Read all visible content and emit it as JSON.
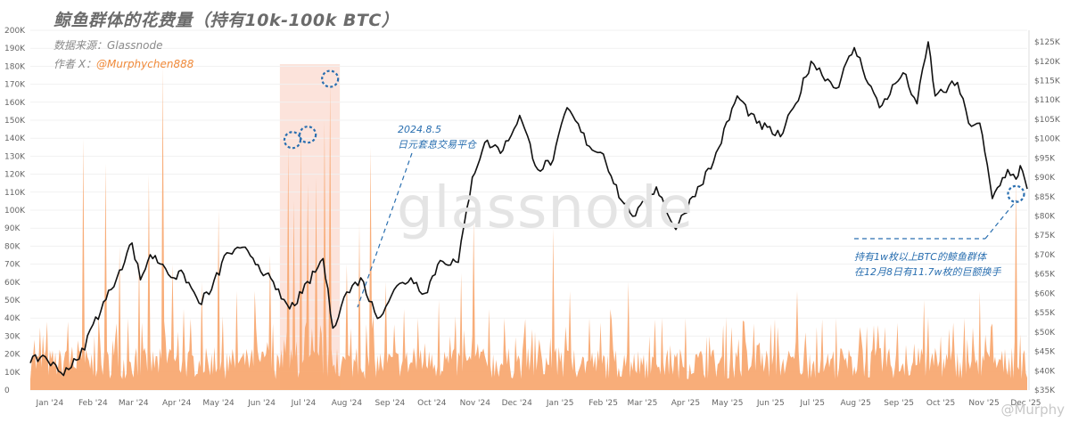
{
  "header": {
    "title": "鲸鱼群体的花费量（持有10k-100k BTC）",
    "source_label": "数据来源：",
    "source_value": "Glassnode",
    "author_label": "作者 X：",
    "author_handle": "@Murphychen888"
  },
  "watermark": {
    "center": "glassnode",
    "footer": "@Murphy"
  },
  "annotations": {
    "yen_date": "2024.8.5",
    "yen_event": "日元套息交易平仓",
    "whale_line1": "持有1w枚以上BTC的鲸鱼群体",
    "whale_line2": "在12月8日有11.7w枚的巨额换手"
  },
  "colors": {
    "spend_fill": "#f7a46a",
    "price_line": "#111111",
    "highlight_band": "#fbd9cf",
    "annotation": "#2a6fb0"
  },
  "chart_data": {
    "type": "area",
    "x_range": [
      "2024-01-01",
      "2025-12-16"
    ],
    "months": [
      "Jan '24",
      "Feb '24",
      "Mar '24",
      "Apr '24",
      "May '24",
      "Jun '24",
      "Jul '24",
      "Aug '24",
      "Sep '24",
      "Oct '24",
      "Nov '24",
      "Dec '24",
      "Jan '25",
      "Feb '25",
      "Mar '25",
      "Apr '25",
      "May '25",
      "Jun '25",
      "Jul '25",
      "Aug '25",
      "Sep '25",
      "Oct '25",
      "Nov '25",
      "Dec '25"
    ],
    "left_axis": {
      "range": [
        0,
        200000
      ],
      "ticks": [
        0,
        10000,
        20000,
        30000,
        40000,
        50000,
        60000,
        70000,
        80000,
        90000,
        100000,
        110000,
        120000,
        130000,
        140000,
        150000,
        160000,
        170000,
        180000,
        190000,
        200000
      ],
      "tick_labels": [
        "0",
        "10K",
        "20K",
        "30K",
        "40K",
        "50K",
        "60K",
        "70K",
        "80K",
        "90K",
        "100K",
        "110K",
        "120K",
        "130K",
        "140K",
        "150K",
        "160K",
        "170K",
        "180K",
        "190K",
        "200K"
      ]
    },
    "right_axis": {
      "range": [
        35000,
        128000
      ],
      "ticks": [
        35000,
        40000,
        45000,
        50000,
        55000,
        60000,
        65000,
        70000,
        75000,
        80000,
        85000,
        90000,
        95000,
        100000,
        105000,
        110000,
        115000,
        120000,
        125000
      ],
      "tick_labels": [
        "$35K",
        "$40K",
        "$45K",
        "$50K",
        "$55K",
        "$60K",
        "$65K",
        "$70K",
        "$75K",
        "$80K",
        "$85K",
        "$90K",
        "$95K",
        "$100K",
        "$105K",
        "$110K",
        "$115K",
        "$120K",
        "$125K"
      ]
    },
    "highlight_range": [
      "2024-06-28",
      "2024-08-10"
    ],
    "series": [
      {
        "kind": "price",
        "axis": "right",
        "points": [
          [
            "2024-01-01",
            42000
          ],
          [
            "2024-01-10",
            44000
          ],
          [
            "2024-01-23",
            39500
          ],
          [
            "2024-02-05",
            43000
          ],
          [
            "2024-02-15",
            52000
          ],
          [
            "2024-02-28",
            61000
          ],
          [
            "2024-03-05",
            66000
          ],
          [
            "2024-03-14",
            73000
          ],
          [
            "2024-03-20",
            63500
          ],
          [
            "2024-03-27",
            70000
          ],
          [
            "2024-04-05",
            67500
          ],
          [
            "2024-04-13",
            64000
          ],
          [
            "2024-04-20",
            65000
          ],
          [
            "2024-05-01",
            57500
          ],
          [
            "2024-05-10",
            61000
          ],
          [
            "2024-05-21",
            70500
          ],
          [
            "2024-06-05",
            71000
          ],
          [
            "2024-06-18",
            65000
          ],
          [
            "2024-06-25",
            61000
          ],
          [
            "2024-07-05",
            56000
          ],
          [
            "2024-07-14",
            60000
          ],
          [
            "2024-07-29",
            69000
          ],
          [
            "2024-08-05",
            51000
          ],
          [
            "2024-08-13",
            59000
          ],
          [
            "2024-08-25",
            64000
          ],
          [
            "2024-09-06",
            53500
          ],
          [
            "2024-09-18",
            61000
          ],
          [
            "2024-09-30",
            64000
          ],
          [
            "2024-10-10",
            60000
          ],
          [
            "2024-10-21",
            68500
          ],
          [
            "2024-11-03",
            68000
          ],
          [
            "2024-11-13",
            90000
          ],
          [
            "2024-11-22",
            99000
          ],
          [
            "2024-12-05",
            97000
          ],
          [
            "2024-12-17",
            106000
          ],
          [
            "2024-12-30",
            92000
          ],
          [
            "2025-01-10",
            94500
          ],
          [
            "2025-01-20",
            108000
          ],
          [
            "2025-02-05",
            98000
          ],
          [
            "2025-02-15",
            96000
          ],
          [
            "2025-02-28",
            84000
          ],
          [
            "2025-03-10",
            80000
          ],
          [
            "2025-03-25",
            87500
          ],
          [
            "2025-04-08",
            76500
          ],
          [
            "2025-04-20",
            85000
          ],
          [
            "2025-05-05",
            94000
          ],
          [
            "2025-05-22",
            111000
          ],
          [
            "2025-06-05",
            104000
          ],
          [
            "2025-06-22",
            100500
          ],
          [
            "2025-07-03",
            109000
          ],
          [
            "2025-07-14",
            120000
          ],
          [
            "2025-08-01",
            113000
          ],
          [
            "2025-08-14",
            123500
          ],
          [
            "2025-09-01",
            108000
          ],
          [
            "2025-09-18",
            117000
          ],
          [
            "2025-09-28",
            109000
          ],
          [
            "2025-10-06",
            125000
          ],
          [
            "2025-10-11",
            111000
          ],
          [
            "2025-10-27",
            114500
          ],
          [
            "2025-11-04",
            104000
          ],
          [
            "2025-11-12",
            104000
          ],
          [
            "2025-11-21",
            84500
          ],
          [
            "2025-12-02",
            92000
          ],
          [
            "2025-12-08",
            89500
          ],
          [
            "2025-12-11",
            93000
          ],
          [
            "2025-12-16",
            87000
          ]
        ]
      },
      {
        "kind": "spend",
        "axis": "left",
        "points": [
          [
            "2024-01-04",
            28000
          ],
          [
            "2024-01-13",
            38000
          ],
          [
            "2024-01-27",
            22000
          ],
          [
            "2024-02-08",
            140000
          ],
          [
            "2024-02-16",
            30000
          ],
          [
            "2024-02-24",
            126000
          ],
          [
            "2024-03-05",
            80000
          ],
          [
            "2024-03-11",
            40000
          ],
          [
            "2024-03-19",
            75000
          ],
          [
            "2024-03-26",
            120000
          ],
          [
            "2024-04-05",
            180000
          ],
          [
            "2024-04-12",
            70000
          ],
          [
            "2024-04-20",
            45000
          ],
          [
            "2024-05-03",
            60000
          ],
          [
            "2024-05-15",
            100000
          ],
          [
            "2024-05-28",
            55000
          ],
          [
            "2024-06-10",
            55000
          ],
          [
            "2024-06-21",
            75000
          ],
          [
            "2024-07-04",
            135000
          ],
          [
            "2024-07-08",
            105000
          ],
          [
            "2024-07-13",
            140000
          ],
          [
            "2024-07-18",
            115000
          ],
          [
            "2024-07-24",
            118000
          ],
          [
            "2024-07-30",
            150000
          ],
          [
            "2024-08-03",
            172000
          ],
          [
            "2024-08-15",
            70000
          ],
          [
            "2024-08-24",
            92000
          ],
          [
            "2024-09-01",
            135000
          ],
          [
            "2024-09-12",
            60000
          ],
          [
            "2024-09-25",
            45000
          ],
          [
            "2024-10-05",
            40000
          ],
          [
            "2024-10-20",
            50000
          ],
          [
            "2024-11-05",
            65000
          ],
          [
            "2024-11-14",
            95000
          ],
          [
            "2024-11-25",
            45000
          ],
          [
            "2024-12-06",
            40000
          ],
          [
            "2024-12-20",
            30000
          ],
          [
            "2025-01-10",
            90000
          ],
          [
            "2025-01-22",
            55000
          ],
          [
            "2025-02-05",
            40000
          ],
          [
            "2025-02-20",
            45000
          ],
          [
            "2025-03-05",
            60000
          ],
          [
            "2025-03-20",
            30000
          ],
          [
            "2025-04-04",
            25000
          ],
          [
            "2025-04-15",
            40000
          ],
          [
            "2025-05-02",
            30000
          ],
          [
            "2025-05-18",
            35000
          ],
          [
            "2025-06-05",
            25000
          ],
          [
            "2025-06-20",
            35000
          ],
          [
            "2025-07-04",
            55000
          ],
          [
            "2025-07-18",
            35000
          ],
          [
            "2025-08-01",
            40000
          ],
          [
            "2025-08-18",
            35000
          ],
          [
            "2025-09-05",
            35000
          ],
          [
            "2025-09-20",
            25000
          ],
          [
            "2025-10-03",
            50000
          ],
          [
            "2025-10-15",
            30000
          ],
          [
            "2025-11-01",
            40000
          ],
          [
            "2025-11-12",
            55000
          ],
          [
            "2025-11-20",
            35000
          ],
          [
            "2025-12-08",
            117000
          ]
        ]
      }
    ]
  }
}
